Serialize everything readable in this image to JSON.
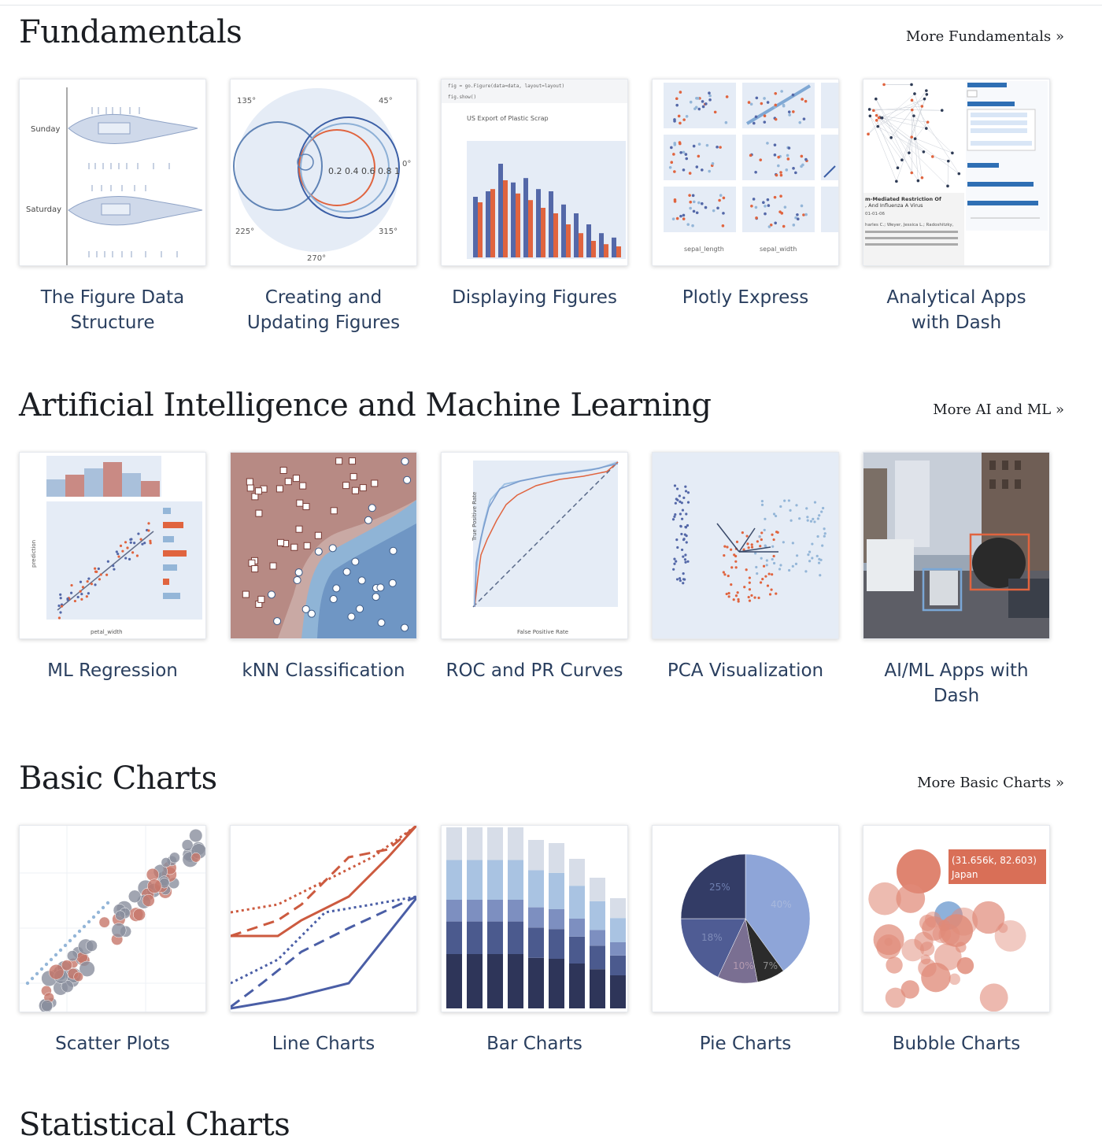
{
  "sections": [
    {
      "title": "Fundamentals",
      "more": "More Fundamentals »",
      "cards": [
        {
          "label": "The Figure Data Structure",
          "icon": "violin-plot-thumbnail"
        },
        {
          "label": "Creating and Updating Figures",
          "icon": "polar-plot-thumbnail"
        },
        {
          "label": "Displaying Figures",
          "icon": "grouped-bar-thumbnail"
        },
        {
          "label": "Plotly Express",
          "icon": "scatter-matrix-thumbnail"
        },
        {
          "label": "Analytical Apps with Dash",
          "icon": "network-app-thumbnail"
        }
      ]
    },
    {
      "title": "Artificial Intelligence and Machine Learning",
      "more": "More AI and ML »",
      "cards": [
        {
          "label": "ML Regression",
          "icon": "regression-thumbnail"
        },
        {
          "label": "kNN Classification",
          "icon": "knn-thumbnail"
        },
        {
          "label": "ROC and PR Curves",
          "icon": "roc-curve-thumbnail"
        },
        {
          "label": "PCA Visualization",
          "icon": "pca-thumbnail"
        },
        {
          "label": "AI/ML Apps with Dash",
          "icon": "object-detection-thumbnail"
        }
      ]
    },
    {
      "title": "Basic Charts",
      "more": "More Basic Charts »",
      "cards": [
        {
          "label": "Scatter Plots",
          "icon": "scatter-thumbnail"
        },
        {
          "label": "Line Charts",
          "icon": "line-chart-thumbnail"
        },
        {
          "label": "Bar Charts",
          "icon": "bar-chart-thumbnail"
        },
        {
          "label": "Pie Charts",
          "icon": "pie-chart-thumbnail"
        },
        {
          "label": "Bubble Charts",
          "icon": "bubble-chart-thumbnail"
        }
      ]
    },
    {
      "title": "Statistical Charts"
    }
  ],
  "thumbnail_text": {
    "violin_sunday": "Sunday",
    "violin_saturday": "Saturday",
    "polar_135": "135°",
    "polar_45": "45°",
    "polar_0": "0°",
    "polar_225": "225°",
    "polar_315": "315°",
    "polar_270": "270°",
    "polar_radial": "0.2  0.4  0.6  0.8  1",
    "bar_code_1": "fig = go.Figure(data=data, layout=layout)",
    "bar_code_2": "fig.show()",
    "bar_title": "US Export of Plastic Scrap",
    "smatrix_x1": "sepal_length",
    "smatrix_x2": "sepal_width",
    "dash_paper_title": "m-Mediated Restriction Of",
    "dash_paper_title2": ", And Influenza A Virus",
    "dash_paper_date": "01-01-06",
    "dash_paper_authors": "harles C.; Weyer, Jessica L.; Radoshitzky,",
    "reg_ylabel": "prediction",
    "reg_xlabel": "petal_width",
    "roc_xlabel": "False Positive Rate",
    "roc_ylabel": "True Positive Rate",
    "pie_25": "25%",
    "pie_40": "40%",
    "pie_18": "18%",
    "pie_10": "10%",
    "pie_7": "7%",
    "bubble_tooltip_1": "(31.656k, 82.603)",
    "bubble_tooltip_2": "Japan"
  },
  "colors": {
    "accent_red": "#e0643f",
    "accent_blue": "#5468a8",
    "light_blue": "#94b6d8",
    "plot_bg": "#e5ecf6"
  }
}
